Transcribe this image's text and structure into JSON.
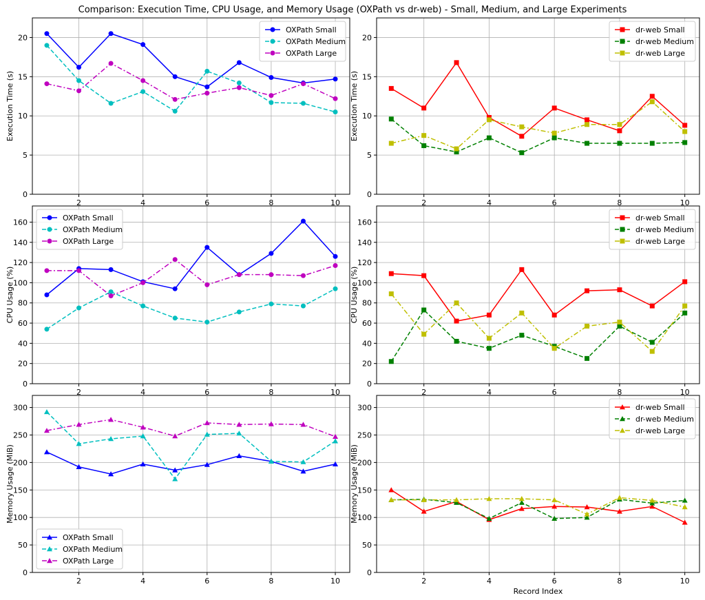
{
  "figure": {
    "title": "Comparison: Execution Time, CPU Usage, and Memory Usage (OXPath vs dr-web) - Small, Medium, and Large Experiments"
  },
  "chart_data": [
    {
      "type": "line",
      "id": "exec-oxpath",
      "xlabel": "",
      "ylabel": "Execution Time (s)",
      "x": [
        1,
        2,
        3,
        4,
        5,
        6,
        7,
        8,
        9,
        10
      ],
      "xticks": [
        2,
        4,
        6,
        8,
        10
      ],
      "ylim": [
        0,
        22.5
      ],
      "yticks": [
        0,
        5,
        10,
        15,
        20
      ],
      "grid": true,
      "legend": "top-right",
      "series": [
        {
          "name": "OXPath Small",
          "color": "#0000ff",
          "dash": "solid",
          "marker": "circle",
          "values": [
            20.5,
            16.2,
            20.5,
            19.1,
            15.0,
            13.7,
            16.8,
            14.9,
            14.2,
            14.7
          ]
        },
        {
          "name": "OXPath Medium",
          "color": "#00bfbf",
          "dash": "dashed",
          "marker": "circle",
          "values": [
            19.0,
            14.5,
            11.6,
            13.1,
            10.6,
            15.7,
            14.2,
            11.7,
            11.6,
            10.5
          ]
        },
        {
          "name": "OXPath Large",
          "color": "#bf00bf",
          "dash": "dashdot",
          "marker": "circle",
          "values": [
            14.1,
            13.2,
            16.7,
            14.5,
            12.1,
            12.9,
            13.6,
            12.6,
            14.1,
            12.2
          ]
        }
      ]
    },
    {
      "type": "line",
      "id": "exec-drweb",
      "xlabel": "",
      "ylabel": "Execution Time (s)",
      "x": [
        1,
        2,
        3,
        4,
        5,
        6,
        7,
        8,
        9,
        10
      ],
      "xticks": [
        2,
        4,
        6,
        8,
        10
      ],
      "ylim": [
        0,
        22.5
      ],
      "yticks": [
        0,
        5,
        10,
        15,
        20
      ],
      "grid": true,
      "legend": "top-right",
      "series": [
        {
          "name": "dr-web Small",
          "color": "#ff0000",
          "dash": "solid",
          "marker": "square",
          "values": [
            13.5,
            11.0,
            16.8,
            9.8,
            7.4,
            11.0,
            9.5,
            8.1,
            12.5,
            8.8
          ]
        },
        {
          "name": "dr-web Medium",
          "color": "#008000",
          "dash": "dashed",
          "marker": "square",
          "values": [
            9.6,
            6.2,
            5.4,
            7.2,
            5.3,
            7.2,
            6.5,
            6.5,
            6.5,
            6.6
          ]
        },
        {
          "name": "dr-web Large",
          "color": "#bfbf00",
          "dash": "dashdot",
          "marker": "square",
          "values": [
            6.5,
            7.5,
            5.8,
            9.5,
            8.6,
            7.8,
            8.9,
            8.9,
            11.8,
            8.0
          ]
        }
      ]
    },
    {
      "type": "line",
      "id": "cpu-oxpath",
      "xlabel": "",
      "ylabel": "CPU Usage (%)",
      "x": [
        1,
        2,
        3,
        4,
        5,
        6,
        7,
        8,
        9,
        10
      ],
      "xticks": [
        2,
        4,
        6,
        8,
        10
      ],
      "ylim": [
        0,
        176
      ],
      "yticks": [
        0,
        20,
        40,
        60,
        80,
        100,
        120,
        140,
        160
      ],
      "grid": true,
      "legend": "top-left",
      "series": [
        {
          "name": "OXPath Small",
          "color": "#0000ff",
          "dash": "solid",
          "marker": "circle",
          "values": [
            88,
            114,
            113,
            101,
            94,
            135,
            108,
            129,
            161,
            126
          ]
        },
        {
          "name": "OXPath Medium",
          "color": "#00bfbf",
          "dash": "dashed",
          "marker": "circle",
          "values": [
            54,
            75,
            91,
            77,
            65,
            61,
            71,
            79,
            77,
            94
          ]
        },
        {
          "name": "OXPath Large",
          "color": "#bf00bf",
          "dash": "dashdot",
          "marker": "circle",
          "values": [
            112,
            112,
            87,
            100,
            123,
            98,
            108,
            108,
            107,
            117
          ]
        }
      ]
    },
    {
      "type": "line",
      "id": "cpu-drweb",
      "xlabel": "",
      "ylabel": "CPU Usage (%)",
      "x": [
        1,
        2,
        3,
        4,
        5,
        6,
        7,
        8,
        9,
        10
      ],
      "xticks": [
        2,
        4,
        6,
        8,
        10
      ],
      "ylim": [
        0,
        176
      ],
      "yticks": [
        0,
        20,
        40,
        60,
        80,
        100,
        120,
        140,
        160
      ],
      "grid": true,
      "legend": "top-right",
      "series": [
        {
          "name": "dr-web Small",
          "color": "#ff0000",
          "dash": "solid",
          "marker": "square",
          "values": [
            109,
            107,
            62,
            68,
            113,
            68,
            92,
            93,
            77,
            101
          ]
        },
        {
          "name": "dr-web Medium",
          "color": "#008000",
          "dash": "dashed",
          "marker": "square",
          "values": [
            22,
            73,
            42,
            35,
            48,
            37,
            25,
            57,
            41,
            70
          ]
        },
        {
          "name": "dr-web Large",
          "color": "#bfbf00",
          "dash": "dashdot",
          "marker": "square",
          "values": [
            89,
            49,
            80,
            45,
            70,
            35,
            57,
            61,
            32,
            77
          ]
        }
      ]
    },
    {
      "type": "line",
      "id": "mem-oxpath",
      "xlabel": "",
      "ylabel": "Memory Usage (MiB)",
      "x": [
        1,
        2,
        3,
        4,
        5,
        6,
        7,
        8,
        9,
        10
      ],
      "xticks": [
        2,
        4,
        6,
        8,
        10
      ],
      "ylim": [
        0,
        322
      ],
      "yticks": [
        0,
        50,
        100,
        150,
        200,
        250,
        300
      ],
      "grid": true,
      "legend": "bottom-left",
      "series": [
        {
          "name": "OXPath Small",
          "color": "#0000ff",
          "dash": "solid",
          "marker": "triangle",
          "values": [
            219,
            192,
            179,
            197,
            186,
            196,
            212,
            202,
            184,
            197
          ]
        },
        {
          "name": "OXPath Medium",
          "color": "#00bfbf",
          "dash": "dashed",
          "marker": "triangle",
          "values": [
            292,
            234,
            243,
            248,
            170,
            251,
            253,
            202,
            201,
            239
          ]
        },
        {
          "name": "OXPath Large",
          "color": "#bf00bf",
          "dash": "dashdot",
          "marker": "triangle",
          "values": [
            258,
            269,
            278,
            264,
            248,
            272,
            269,
            270,
            269,
            247
          ]
        }
      ]
    },
    {
      "type": "line",
      "id": "mem-drweb",
      "xlabel": "Record Index",
      "ylabel": "Memory Usage (MiB)",
      "x": [
        1,
        2,
        3,
        4,
        5,
        6,
        7,
        8,
        9,
        10
      ],
      "xticks": [
        2,
        4,
        6,
        8,
        10
      ],
      "ylim": [
        0,
        322
      ],
      "yticks": [
        0,
        50,
        100,
        150,
        200,
        250,
        300
      ],
      "grid": true,
      "legend": "top-right",
      "series": [
        {
          "name": "dr-web Small",
          "color": "#ff0000",
          "dash": "solid",
          "marker": "triangle",
          "values": [
            150,
            111,
            129,
            96,
            116,
            120,
            119,
            111,
            120,
            91
          ]
        },
        {
          "name": "dr-web Medium",
          "color": "#008000",
          "dash": "dashed",
          "marker": "triangle",
          "values": [
            132,
            133,
            127,
            98,
            127,
            98,
            100,
            133,
            126,
            131
          ]
        },
        {
          "name": "dr-web Large",
          "color": "#bfbf00",
          "dash": "dashdot",
          "marker": "triangle",
          "values": [
            132,
            132,
            132,
            134,
            134,
            132,
            106,
            136,
            131,
            119
          ]
        }
      ]
    }
  ]
}
